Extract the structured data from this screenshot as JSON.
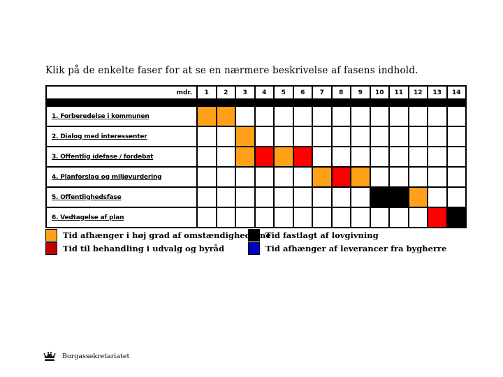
{
  "title": "Klik på de enkelte faser for at se en nærmere beskrivelse af fasens indhold.",
  "colors": {
    "orange": "#FFA019",
    "red": "#FF0000",
    "black": "#000000",
    "legend_red": "#C00000",
    "legend_blue": "#0000CC",
    "grid": "#000000"
  },
  "chart_data": {
    "type": "table",
    "subtype": "gantt",
    "unit_label": "mdr.",
    "months": [
      "1",
      "2",
      "3",
      "4",
      "5",
      "6",
      "7",
      "8",
      "9",
      "10",
      "11",
      "12",
      "13",
      "14"
    ],
    "rows": [
      {
        "label": "1. Forberedelse i kommunen",
        "filled": {
          "1": "orange",
          "2": "orange"
        }
      },
      {
        "label": "2. Dialog med interessenter",
        "filled": {
          "3": "orange"
        }
      },
      {
        "label": "3. Offentlig idefase / fordebat",
        "filled": {
          "3": "orange",
          "4": "red",
          "5": "orange",
          "6": "red"
        }
      },
      {
        "label": "4. Planforslag og miljøvurdering",
        "filled": {
          "7": "orange",
          "8": "red",
          "9": "orange"
        }
      },
      {
        "label": "5. Offentlighedsfase",
        "filled": {
          "10": "black",
          "11": "black",
          "12": "orange"
        }
      },
      {
        "label": "6. Vedtagelse af plan",
        "filled": {
          "13": "red",
          "14": "black"
        }
      }
    ],
    "legend_position": "below",
    "grid": true
  },
  "legend": [
    {
      "color_key": "orange",
      "label": "Tid afhænger i høj grad af omstændighederne",
      "column": "left"
    },
    {
      "color_key": "legend_red",
      "label": "Tid til behandling i udvalg og byråd",
      "column": "left"
    },
    {
      "color_key": "black",
      "label": "Tid fastlagt af lovgivning",
      "column": "right"
    },
    {
      "color_key": "legend_blue",
      "label": "Tid afhænger af leverancer fra bygherre",
      "column": "right"
    }
  ],
  "footer": {
    "logo": "crown-icon",
    "text": "Borgassekretariatet"
  }
}
